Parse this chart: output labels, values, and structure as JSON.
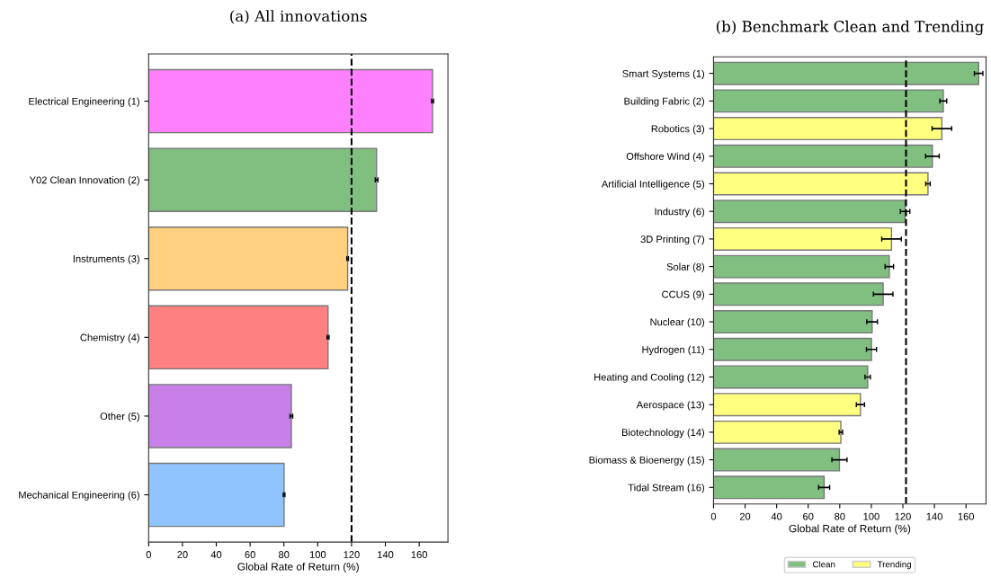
{
  "chart_data": [
    {
      "type": "bar",
      "orientation": "horizontal",
      "title": "(a) All innovations",
      "xlabel": "Global Rate of Return (%)",
      "categories": [
        "Electrical Engineering (1)",
        "Y02 Clean Innovation (2)",
        "Instruments (3)",
        "Chemistry (4)",
        "Other (5)",
        "Mechanical Engineering (6)"
      ],
      "values": [
        167.9,
        134.8,
        117.7,
        106.1,
        84.4,
        80.1
      ],
      "errors": [
        0.6,
        0.8,
        0.5,
        0.6,
        0.8,
        0.5
      ],
      "colors": [
        "#ff80ff",
        "#80bf80",
        "#ffd080",
        "#ff8080",
        "#c880e8",
        "#8fc4ff"
      ],
      "xlim": [
        0,
        177
      ],
      "xticks": [
        0,
        20,
        40,
        60,
        80,
        100,
        120,
        140,
        160
      ],
      "ref_lines": [
        {
          "axis": "x",
          "value": 120,
          "line_style": "dashed"
        }
      ],
      "grid": false,
      "legend": false
    },
    {
      "type": "bar",
      "orientation": "horizontal",
      "title": "(b) Benchmark Clean and Trending",
      "xlabel": "Global Rate of Return (%)",
      "categories": [
        "Smart Systems (1)",
        "Building Fabric (2)",
        "Robotics (3)",
        "Offshore Wind (4)",
        "Artificial Intelligence (5)",
        "Industry (6)",
        "3D Printing (7)",
        "Solar (8)",
        "CCUS (9)",
        "Nuclear (10)",
        "Hydrogen (11)",
        "Heating and Cooling (12)",
        "Aerospace (13)",
        "Biotechnology (14)",
        "Biomass & Bioenergy (15)",
        "Tidal Stream (16)"
      ],
      "series": [
        {
          "name": "Clean",
          "color": "#80bf80",
          "values": [
            168.0,
            145.6,
            null,
            138.7,
            null,
            121.4,
            null,
            111.4,
            107.5,
            100.5,
            100.1,
            97.7,
            null,
            null,
            79.8,
            70.1
          ],
          "errors": [
            2.7,
            2.2,
            null,
            4.3,
            null,
            3.0,
            null,
            2.7,
            6.2,
            3.4,
            3.2,
            1.7,
            null,
            null,
            4.8,
            3.5
          ]
        },
        {
          "name": "Trending",
          "color": "#ffff80",
          "values": [
            null,
            null,
            144.7,
            null,
            135.9,
            null,
            112.8,
            null,
            null,
            null,
            null,
            null,
            93.1,
            80.7,
            null,
            null
          ],
          "errors": [
            null,
            null,
            6.2,
            null,
            1.4,
            null,
            6.2,
            null,
            null,
            null,
            null,
            null,
            2.6,
            1.1,
            null,
            null
          ]
        }
      ],
      "xlim": [
        0,
        172.7
      ],
      "xticks": [
        0,
        20,
        40,
        60,
        80,
        100,
        120,
        140,
        160
      ],
      "ref_lines": [
        {
          "axis": "x",
          "value": 122,
          "line_style": "dashed"
        }
      ],
      "grid": false,
      "legend": "bottom"
    }
  ]
}
